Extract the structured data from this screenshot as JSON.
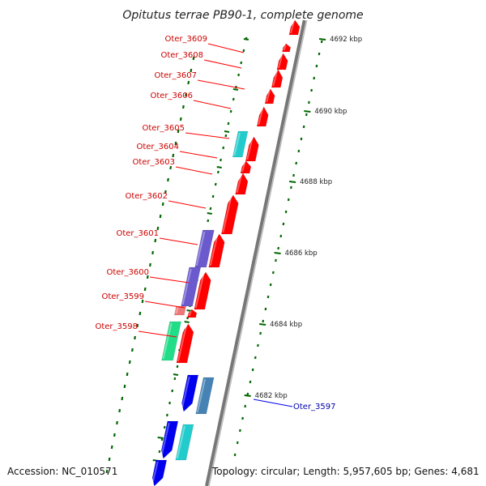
{
  "title": "Opitutus terrae PB90-1, complete genome",
  "footer": {
    "accession": "Accession: NC_010571",
    "topology": "Topology: circular; Length: 5,957,605 bp; Genes: 4,681"
  },
  "colors": {
    "forward": "#ff0000",
    "reverse": "#0000ee",
    "forward_label": "#cc0000",
    "reverse_label": "#0000aa",
    "backbone": "#888888",
    "tick": "#006600",
    "violet": "#6a5acd",
    "cyan": "#22cccc",
    "green": "#22dd88",
    "pink": "#ee7777",
    "steel": "#4682b4"
  },
  "scale_labels": [
    "4692 kbp",
    "4690 kbp",
    "4688 kbp",
    "4686 kbp",
    "4684 kbp",
    "4682 kbp"
  ],
  "gene_labels": [
    {
      "text": "Oter_3609",
      "strand": "forward"
    },
    {
      "text": "Oter_3608",
      "strand": "forward"
    },
    {
      "text": "Oter_3607",
      "strand": "forward"
    },
    {
      "text": "Oter_3606",
      "strand": "forward"
    },
    {
      "text": "Oter_3605",
      "strand": "forward"
    },
    {
      "text": "Oter_3604",
      "strand": "forward"
    },
    {
      "text": "Oter_3603",
      "strand": "forward"
    },
    {
      "text": "Oter_3602",
      "strand": "forward"
    },
    {
      "text": "Oter_3601",
      "strand": "forward"
    },
    {
      "text": "Oter_3600",
      "strand": "forward"
    },
    {
      "text": "Oter_3599",
      "strand": "forward"
    },
    {
      "text": "Oter_3598",
      "strand": "forward"
    },
    {
      "text": "Oter_3597",
      "strand": "reverse"
    }
  ]
}
